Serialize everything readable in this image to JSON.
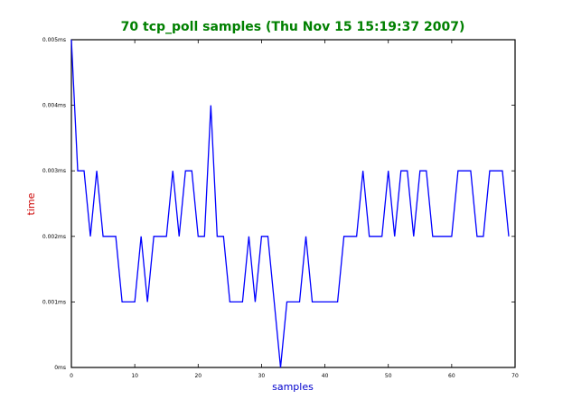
{
  "chart_data": {
    "type": "line",
    "title": "70 tcp_poll samples (Thu Nov 15 15:19:37 2007)",
    "xlabel": "samples",
    "ylabel": "time",
    "xlim": [
      0,
      70
    ],
    "ylim": [
      0,
      0.005
    ],
    "xticks": [
      0,
      10,
      20,
      30,
      40,
      50,
      60,
      70
    ],
    "xtick_labels": [
      "0",
      "10",
      "20",
      "30",
      "40",
      "50",
      "60",
      "70"
    ],
    "yticks": [
      0,
      0.001,
      0.002,
      0.003,
      0.004,
      0.005
    ],
    "ytick_labels": [
      "0ms",
      "0.001ms",
      "0.002ms",
      "0.003ms",
      "0.004ms",
      "0.005ms"
    ],
    "grid": false,
    "line_color": "#0000ff",
    "title_color": "#008000",
    "xlabel_color": "#0000cc",
    "ylabel_color": "#cc0000",
    "series": [
      {
        "values": [
          0.005,
          0.003,
          0.003,
          0.002,
          0.003,
          0.002,
          0.002,
          0.002,
          0.001,
          0.001,
          0.001,
          0.002,
          0.001,
          0.002,
          0.002,
          0.002,
          0.003,
          0.002,
          0.003,
          0.003,
          0.002,
          0.002,
          0.004,
          0.002,
          0.002,
          0.001,
          0.001,
          0.001,
          0.002,
          0.001,
          0.002,
          0.002,
          0.001,
          0.0,
          0.001,
          0.001,
          0.001,
          0.002,
          0.001,
          0.001,
          0.001,
          0.001,
          0.001,
          0.002,
          0.002,
          0.002,
          0.003,
          0.002,
          0.002,
          0.002,
          0.003,
          0.002,
          0.003,
          0.003,
          0.002,
          0.003,
          0.003,
          0.002,
          0.002,
          0.002,
          0.002,
          0.003,
          0.003,
          0.003,
          0.002,
          0.002,
          0.003,
          0.003,
          0.003,
          0.002
        ]
      }
    ]
  }
}
